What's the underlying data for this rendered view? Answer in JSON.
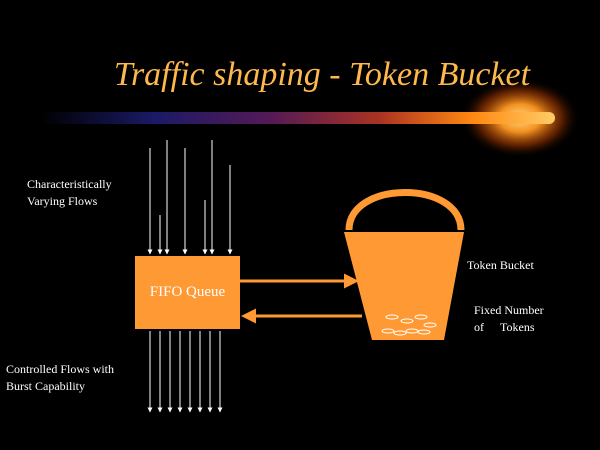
{
  "title": "Traffic shaping - Token Bucket",
  "labels": {
    "incoming_line1": "Characteristically",
    "incoming_line2": "Varying Flows",
    "queue": "FIFO Queue",
    "bucket": "Token Bucket",
    "tokens_line1": "Fixed Number",
    "tokens_line2_a": "of",
    "tokens_line2_b": "Tokens",
    "outgoing_line1": "Controlled Flows with",
    "outgoing_line2": "Burst Capability"
  },
  "colors": {
    "background": "#000000",
    "title": "#FFB84D",
    "shape_fill": "#FF9933",
    "text": "#FFFFFF"
  }
}
